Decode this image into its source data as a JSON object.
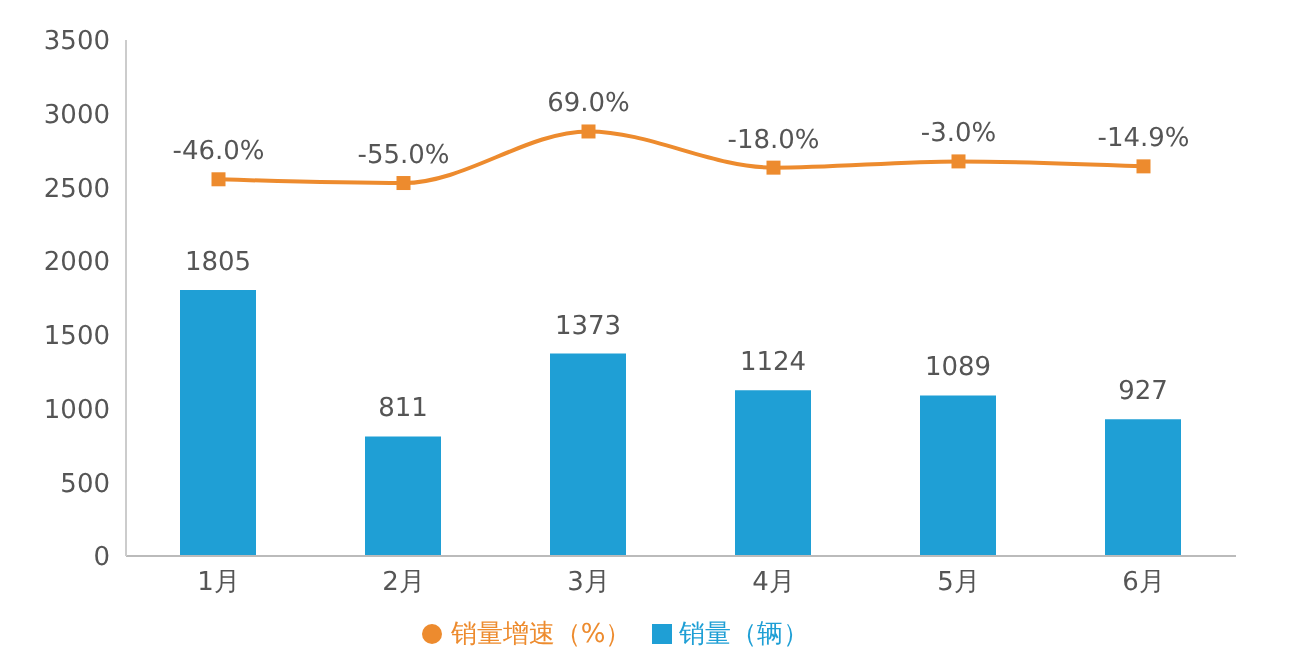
{
  "chart_data": {
    "type": "bar",
    "categories": [
      "1月",
      "2月",
      "3月",
      "4月",
      "5月",
      "6月"
    ],
    "series": [
      {
        "name": "销量（辆）",
        "color": "#1f9fd5",
        "values": [
          1805,
          811,
          1373,
          1124,
          1089,
          927
        ]
      },
      {
        "name": "销量增速（%）",
        "type": "line",
        "axis": "y2",
        "color": "#ed8b2e",
        "marker": "square",
        "values": [
          -46.0,
          -55.0,
          69.0,
          -18.0,
          -3.0,
          -14.9
        ],
        "value_labels": [
          "-46.0%",
          "-55.0%",
          "69.0%",
          "-18.0%",
          "-3.0%",
          "-14.9%"
        ]
      }
    ],
    "ylim": [
      0,
      3500
    ],
    "yticks": [
      0,
      500,
      1000,
      1500,
      2000,
      2500,
      3000,
      3500
    ],
    "y2lim": [
      -952,
      289
    ],
    "data_labels": true,
    "legend": "bottom"
  }
}
